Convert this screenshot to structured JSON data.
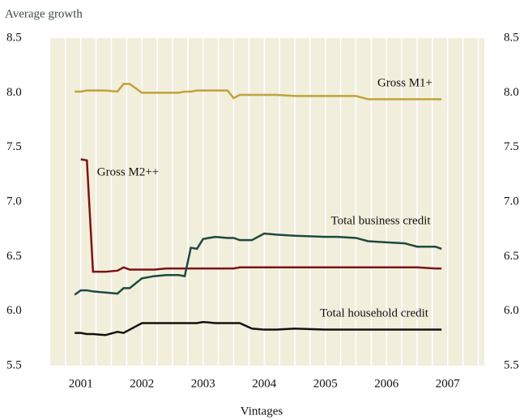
{
  "chart_data": {
    "type": "line",
    "title": "Average growth",
    "x_label": "Vintages",
    "x": [
      2000.9,
      2001.0,
      2001.1,
      2001.2,
      2001.4,
      2001.6,
      2001.7,
      2001.8,
      2002.0,
      2002.2,
      2002.4,
      2002.6,
      2002.7,
      2002.8,
      2002.9,
      2003.0,
      2003.2,
      2003.4,
      2003.5,
      2003.6,
      2003.8,
      2004.0,
      2004.2,
      2004.5,
      2005.0,
      2005.2,
      2005.5,
      2005.7,
      2006.0,
      2006.3,
      2006.5,
      2006.8,
      2006.9
    ],
    "series": [
      {
        "name": "Gross M1+",
        "color": "#c2a23a",
        "values": [
          8.01,
          8.01,
          8.02,
          8.02,
          8.02,
          8.01,
          8.08,
          8.08,
          8.0,
          8.0,
          8.0,
          8.0,
          8.01,
          8.01,
          8.02,
          8.02,
          8.02,
          8.02,
          7.95,
          7.98,
          7.98,
          7.98,
          7.98,
          7.97,
          7.97,
          7.97,
          7.97,
          7.94,
          7.94,
          7.94,
          7.94,
          7.94,
          7.94
        ]
      },
      {
        "name": "Gross M2++",
        "color": "#7a1414",
        "values": [
          null,
          7.39,
          7.38,
          6.36,
          6.36,
          6.37,
          6.4,
          6.38,
          6.38,
          6.38,
          6.39,
          6.39,
          6.39,
          6.39,
          6.39,
          6.39,
          6.39,
          6.39,
          6.39,
          6.4,
          6.4,
          6.4,
          6.4,
          6.4,
          6.4,
          6.4,
          6.4,
          6.4,
          6.4,
          6.4,
          6.4,
          6.39,
          6.39
        ]
      },
      {
        "name": "Total business credit",
        "color": "#1c4a3e",
        "values": [
          6.15,
          6.19,
          6.19,
          6.18,
          6.17,
          6.16,
          6.21,
          6.21,
          6.3,
          6.32,
          6.33,
          6.33,
          6.32,
          6.58,
          6.57,
          6.66,
          6.68,
          6.67,
          6.67,
          6.65,
          6.65,
          6.71,
          6.7,
          6.69,
          6.68,
          6.68,
          6.67,
          6.64,
          6.63,
          6.62,
          6.59,
          6.59,
          6.57
        ]
      },
      {
        "name": "Total household credit",
        "color": "#111111",
        "values": [
          5.8,
          5.8,
          5.79,
          5.79,
          5.78,
          5.81,
          5.8,
          5.83,
          5.89,
          5.89,
          5.89,
          5.89,
          5.89,
          5.89,
          5.89,
          5.9,
          5.89,
          5.89,
          5.89,
          5.89,
          5.84,
          5.83,
          5.83,
          5.84,
          5.83,
          5.83,
          5.83,
          5.83,
          5.83,
          5.83,
          5.83,
          5.83,
          5.83
        ]
      }
    ],
    "xlim": [
      2000.5,
      2007.6
    ],
    "xticks": [
      2001,
      2002,
      2003,
      2004,
      2005,
      2006,
      2007
    ],
    "ylim": [
      5.5,
      8.5
    ],
    "yticks": [
      5.5,
      {
        "value": 6,
        "label": "6.0"
      },
      6.5,
      {
        "value": 7,
        "label": "7.0"
      },
      7.5,
      {
        "value": 8,
        "label": "8.0"
      },
      8.5
    ],
    "grid": true,
    "background": "#f2eedc"
  }
}
